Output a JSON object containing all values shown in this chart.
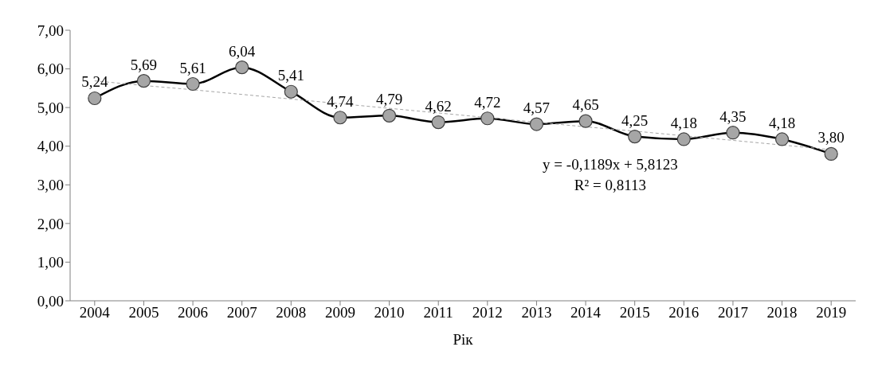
{
  "chart_data": {
    "type": "line",
    "xlabel": "Рік",
    "categories": [
      "2004",
      "2005",
      "2006",
      "2007",
      "2008",
      "2009",
      "2010",
      "2011",
      "2012",
      "2013",
      "2014",
      "2015",
      "2016",
      "2017",
      "2018",
      "2019"
    ],
    "series": [
      {
        "color": "#000000",
        "marker": "circle",
        "line_style": "solid",
        "values": [
          5.24,
          5.69,
          5.61,
          6.04,
          5.41,
          4.74,
          4.79,
          4.62,
          4.72,
          4.57,
          4.65,
          4.25,
          4.18,
          4.35,
          4.18,
          3.8
        ],
        "value_labels": [
          "5,24",
          "5,69",
          "5,61",
          "6,04",
          "5,41",
          "4,74",
          "4,79",
          "4,62",
          "4,72",
          "4,57",
          "4,65",
          "4,25",
          "4,18",
          "4,35",
          "4,18",
          "3,80"
        ]
      },
      {
        "color": "#a6a6a6",
        "marker": "none",
        "line_style": "dashed",
        "values": [
          5.69,
          5.57,
          5.46,
          5.34,
          5.22,
          5.1,
          4.98,
          4.86,
          4.74,
          4.62,
          4.5,
          4.39,
          4.27,
          4.15,
          4.03,
          3.91
        ]
      }
    ],
    "ylim": [
      0,
      7
    ],
    "yticks": [
      {
        "value": 0,
        "label": "0,00"
      },
      {
        "value": 1,
        "label": "1,00"
      },
      {
        "value": 2,
        "label": "2,00"
      },
      {
        "value": 3,
        "label": "3,00"
      },
      {
        "value": 4,
        "label": "4,00"
      },
      {
        "value": 5,
        "label": "5,00"
      },
      {
        "value": 6,
        "label": "6,00"
      },
      {
        "value": 7,
        "label": "7,00"
      }
    ],
    "annotations": [
      "y = -0,1189x + 5,8123",
      "R² = 0,8113"
    ],
    "grid": false
  }
}
